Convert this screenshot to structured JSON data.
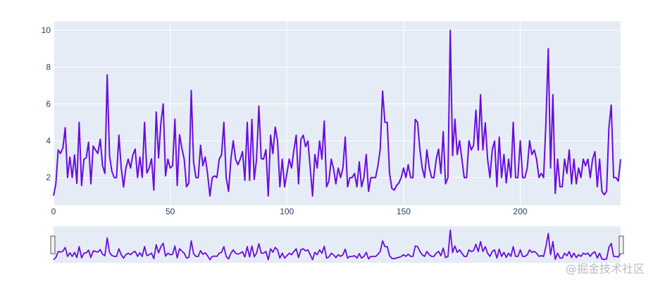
{
  "chart_data": {
    "type": "line",
    "title": "",
    "xlabel": "",
    "ylabel": "",
    "xlim": [
      0,
      243
    ],
    "ylim": [
      0.5,
      10.5
    ],
    "x_ticks": [
      0,
      50,
      100,
      150,
      200
    ],
    "y_ticks": [
      2,
      4,
      6,
      8,
      10
    ],
    "grid": true,
    "legend": "none",
    "range_slider": true,
    "plot_background": "#e5ecf6",
    "line_color": "#6a0dde",
    "series": [
      {
        "values": [
          1.01,
          1.66,
          3.5,
          3.31,
          3.61,
          4.71,
          2.0,
          3.12,
          2.0,
          3.23,
          1.68,
          5.0,
          1.57,
          3.0,
          3.07,
          3.92,
          1.66,
          3.71,
          3.5,
          3.31,
          4.08,
          2.64,
          2.23,
          7.58,
          3.18,
          2.34,
          2.0,
          2.0,
          4.3,
          2.52,
          1.48,
          2.52,
          3.0,
          2.52,
          3.23,
          3.55,
          2.0,
          3.12,
          2.01,
          5.0,
          2.25,
          2.52,
          3.02,
          1.32,
          5.56,
          3.07,
          4.97,
          6.0,
          2.09,
          3.0,
          2.52,
          2.64,
          5.17,
          1.57,
          4.33,
          3.58,
          3.0,
          1.5,
          1.71,
          6.73,
          2.85,
          2.0,
          2.0,
          3.75,
          2.64,
          3.12,
          2.23,
          1.0,
          2.0,
          2.09,
          2.0,
          3.0,
          3.23,
          5.0,
          2.0,
          1.25,
          3.0,
          4.0,
          3.0,
          2.7,
          3.0,
          3.41,
          1.85,
          5.0,
          1.85,
          5.16,
          1.9,
          3.0,
          5.88,
          3.04,
          3.0,
          3.51,
          1.0,
          4.3,
          3.3,
          4.74,
          3.99,
          1.5,
          3.0,
          1.5,
          2.23,
          3.0,
          2.52,
          3.5,
          4.3,
          1.66,
          4.08,
          4.3,
          3.68,
          3.99,
          2.52,
          1.0,
          3.25,
          2.52,
          3.99,
          3.0,
          5.07,
          1.5,
          1.81,
          3.0,
          2.48,
          1.66,
          2.52,
          2.0,
          2.52,
          4.2,
          1.5,
          2.0,
          2.0,
          2.23,
          1.5,
          2.85,
          1.5,
          2.0,
          3.25,
          1.25,
          2.0,
          2.0,
          2.0,
          2.64,
          3.55,
          6.7,
          5.0,
          5.0,
          2.23,
          1.41,
          1.32,
          1.57,
          1.71,
          2.0,
          2.52,
          2.0,
          2.7,
          2.0,
          2.0,
          5.16,
          5.0,
          3.5,
          2.52,
          2.0,
          3.5,
          2.52,
          2.0,
          2.0,
          3.0,
          3.55,
          2.23,
          4.5,
          1.66,
          2.0,
          10.0,
          3.2,
          5.17,
          3.25,
          4.0,
          3.0,
          2.0,
          2.0,
          4.0,
          3.5,
          3.75,
          5.66,
          3.5,
          6.5,
          3.5,
          4.97,
          3.0,
          2.0,
          3.5,
          3.99,
          1.5,
          4.2,
          2.0,
          3.25,
          1.71,
          3.0,
          2.0,
          5.0,
          2.0,
          2.0,
          4.0,
          2.0,
          2.0,
          2.52,
          4.0,
          3.25,
          3.5,
          3.0,
          2.0,
          2.23,
          2.0,
          5.0,
          9.0,
          2.52,
          6.5,
          1.14,
          3.0,
          1.5,
          1.5,
          3.0,
          2.23,
          3.5,
          1.66,
          3.0,
          1.66,
          2.52,
          2.0,
          3.0,
          2.64,
          3.0,
          2.0,
          3.0,
          3.41,
          1.5,
          3.0,
          1.25,
          1.07,
          1.25,
          4.71,
          5.94,
          2.0,
          2.0,
          1.81,
          3.0
        ]
      }
    ]
  },
  "watermark": "@掘金技术社区"
}
